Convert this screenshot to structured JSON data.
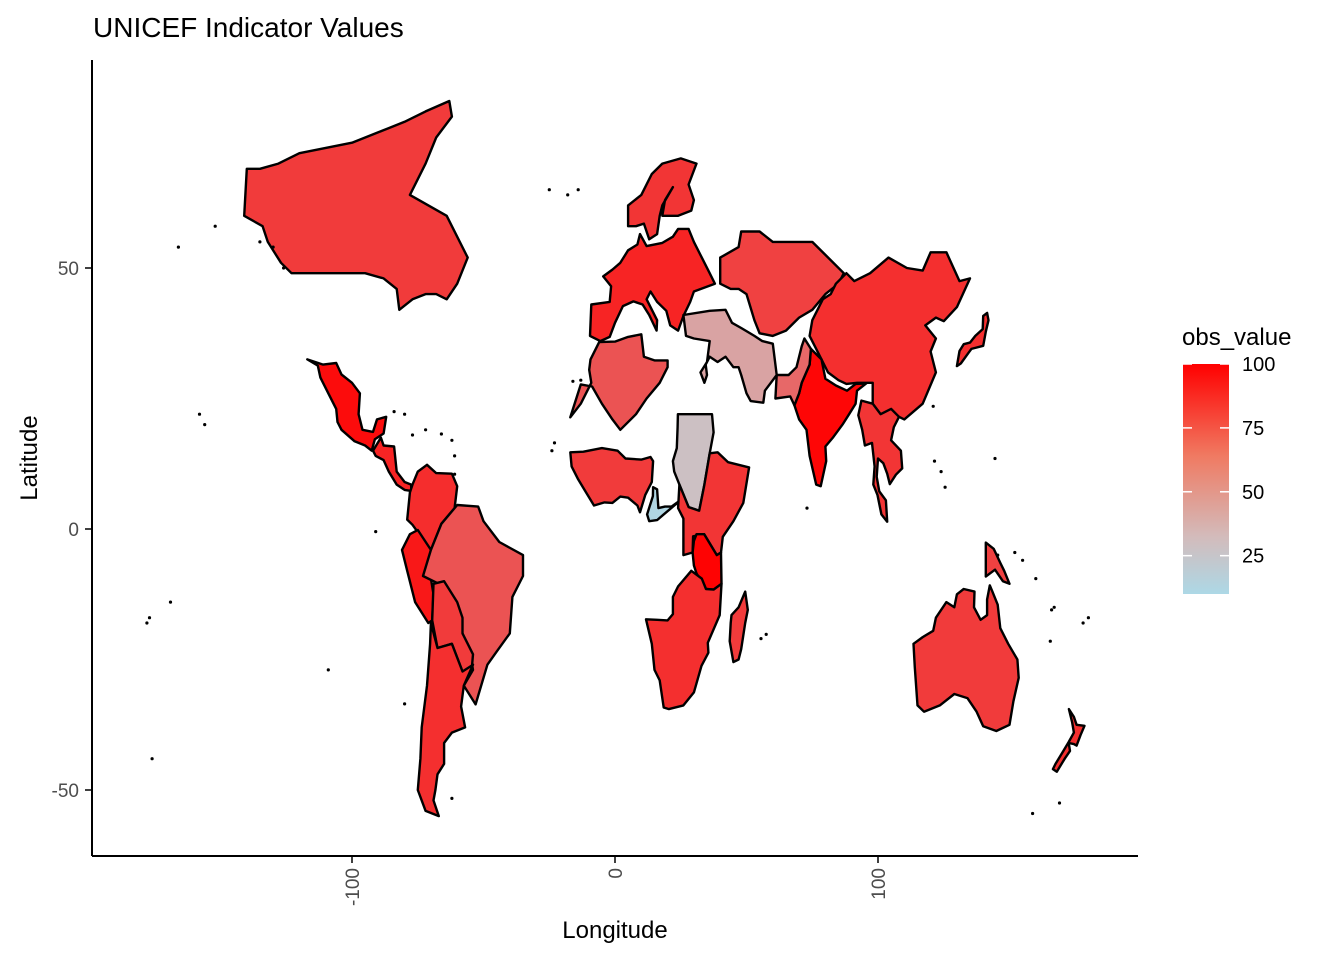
{
  "chart_data": {
    "type": "map",
    "title": "UNICEF Indicator Values",
    "xlabel": "Longitude",
    "ylabel": "Latitude",
    "x_ticks": [
      -100,
      0,
      100
    ],
    "y_ticks": [
      50,
      0,
      -50
    ],
    "xlim": [
      -190,
      200
    ],
    "ylim": [
      -62,
      90
    ],
    "legend": {
      "title": "obs_value",
      "position": "right",
      "breaks": [
        100,
        75,
        50,
        25
      ],
      "range": [
        10,
        100
      ],
      "low_color": "#add8e6",
      "mid_color": "#d3bbbb",
      "high_color": "#ff0000"
    },
    "regions": [
      {
        "name": "Canada",
        "value": 80
      },
      {
        "name": "Mexico",
        "value": 96
      },
      {
        "name": "Central America",
        "value": 88
      },
      {
        "name": "Colombia / Venezuela",
        "value": 85
      },
      {
        "name": "Peru",
        "value": 92
      },
      {
        "name": "Brazil",
        "value": 72
      },
      {
        "name": "Bolivia / Paraguay",
        "value": 80
      },
      {
        "name": "Argentina / Chile",
        "value": 84
      },
      {
        "name": "Europe",
        "value": 88
      },
      {
        "name": "Scandinavia",
        "value": 82
      },
      {
        "name": "Russia / Central Asia",
        "value": 78
      },
      {
        "name": "China / Mongolia",
        "value": 84
      },
      {
        "name": "India",
        "value": 98
      },
      {
        "name": "Pakistan",
        "value": 65
      },
      {
        "name": "Middle East",
        "value": 45
      },
      {
        "name": "North Africa",
        "value": 72
      },
      {
        "name": "West Africa",
        "value": 80
      },
      {
        "name": "Sudan",
        "value": 32
      },
      {
        "name": "Central African Republic",
        "value": 12
      },
      {
        "name": "East Africa",
        "value": 82
      },
      {
        "name": "Kenya / Tanzania",
        "value": 99
      },
      {
        "name": "Southern Africa",
        "value": 84
      },
      {
        "name": "Madagascar",
        "value": 80
      },
      {
        "name": "Southeast Asia",
        "value": 82
      },
      {
        "name": "Japan",
        "value": 84
      },
      {
        "name": "Australia",
        "value": 80
      },
      {
        "name": "New Zealand",
        "value": 84
      },
      {
        "name": "Papua New Guinea",
        "value": 78
      }
    ]
  }
}
